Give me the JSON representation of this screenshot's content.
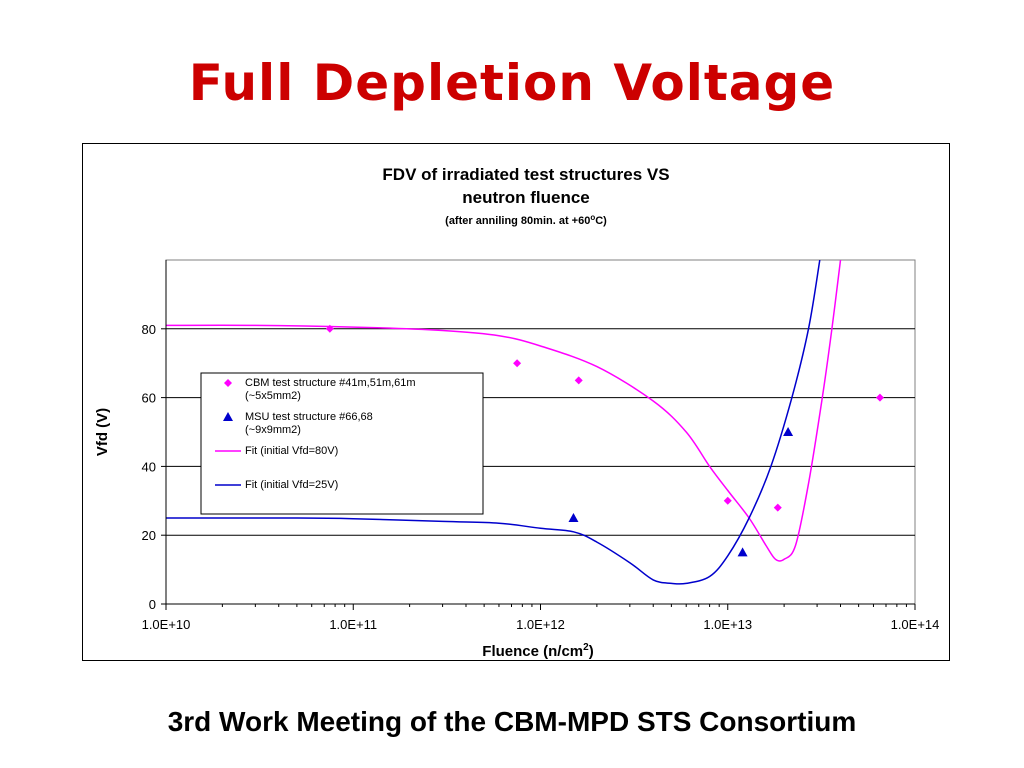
{
  "slide": {
    "title": "Full Depletion Voltage",
    "footer": "3rd Work Meeting of the CBM-MPD STS Consortium"
  },
  "chart_data": {
    "type": "scatter",
    "title_line1": "FDV of irradiated test structures VS",
    "title_line2": "neutron fluence",
    "subtitle_pre": "(after anniling 80min. at +60",
    "subtitle_sup": "o",
    "subtitle_post": "C)",
    "xlabel_pre": "Fluence (n/cm",
    "xlabel_sup": "2",
    "xlabel_post": ")",
    "ylabel": "Vfd (V)",
    "x_scale": "log",
    "xlim": [
      10000000000.0,
      100000000000000.0
    ],
    "ylim": [
      0,
      100
    ],
    "x_ticks": [
      10000000000.0,
      100000000000.0,
      1000000000000.0,
      10000000000000.0,
      100000000000000.0
    ],
    "x_tick_labels": [
      "1.0E+10",
      "1.0E+11",
      "1.0E+12",
      "1.0E+13",
      "1.0E+14"
    ],
    "y_ticks": [
      0,
      20,
      40,
      60,
      80
    ],
    "y_tick_labels": [
      "0",
      "20",
      "40",
      "60",
      "80"
    ],
    "grid": "horizontal",
    "legend_position": "center-left",
    "series": [
      {
        "name": "CBM test structure #41m,51m,61m (~5x5mm2)",
        "legend_lines": [
          "CBM test structure #41m,51m,61m",
          "(~5x5mm2)"
        ],
        "kind": "points",
        "marker": "diamond",
        "color": "#ff00ff",
        "points": [
          [
            75000000000.0,
            80
          ],
          [
            750000000000.0,
            70
          ],
          [
            1600000000000.0,
            65
          ],
          [
            10000000000000.0,
            30
          ],
          [
            18500000000000.0,
            28
          ],
          [
            65000000000000.0,
            60
          ]
        ]
      },
      {
        "name": "MSU test structure #66,68 (~9x9mm2)",
        "legend_lines": [
          "MSU test structure #66,68",
          "(~9x9mm2)"
        ],
        "kind": "points",
        "marker": "triangle",
        "color": "#0000cc",
        "points": [
          [
            1500000000000.0,
            25
          ],
          [
            12000000000000.0,
            15
          ],
          [
            21000000000000.0,
            50
          ]
        ]
      },
      {
        "name": "Fit (initial Vfd=80V)",
        "legend_lines": [
          "Fit (initial Vfd=80V)"
        ],
        "kind": "line",
        "color": "#ff00ff",
        "points": [
          [
            10000000000.0,
            81
          ],
          [
            30000000000.0,
            81
          ],
          [
            100000000000.0,
            80.5
          ],
          [
            300000000000.0,
            79.5
          ],
          [
            600000000000.0,
            78
          ],
          [
            1000000000000.0,
            75
          ],
          [
            2000000000000.0,
            69
          ],
          [
            4000000000000.0,
            59
          ],
          [
            6000000000000.0,
            50
          ],
          [
            8000000000000.0,
            40
          ],
          [
            10000000000000.0,
            33
          ],
          [
            13000000000000.0,
            25
          ],
          [
            16000000000000.0,
            17
          ],
          [
            18000000000000.0,
            13
          ],
          [
            20000000000000.0,
            13
          ],
          [
            23000000000000.0,
            17
          ],
          [
            27000000000000.0,
            35
          ],
          [
            32000000000000.0,
            60
          ],
          [
            36000000000000.0,
            80
          ],
          [
            40000000000000.0,
            100
          ]
        ]
      },
      {
        "name": "Fit (initial Vfd=25V)",
        "legend_lines": [
          "Fit (initial Vfd=25V)"
        ],
        "kind": "line",
        "color": "#0000cc",
        "points": [
          [
            10000000000.0,
            25
          ],
          [
            50000000000.0,
            25
          ],
          [
            100000000000.0,
            24.8
          ],
          [
            300000000000.0,
            24
          ],
          [
            600000000000.0,
            23.5
          ],
          [
            1000000000000.0,
            22
          ],
          [
            1500000000000.0,
            21
          ],
          [
            2000000000000.0,
            18
          ],
          [
            3000000000000.0,
            12
          ],
          [
            4000000000000.0,
            7
          ],
          [
            5000000000000.0,
            6
          ],
          [
            6000000000000.0,
            6
          ],
          [
            8000000000000.0,
            8
          ],
          [
            10000000000000.0,
            14
          ],
          [
            13000000000000.0,
            25
          ],
          [
            17000000000000.0,
            40
          ],
          [
            22000000000000.0,
            60
          ],
          [
            27000000000000.0,
            80
          ],
          [
            31000000000000.0,
            100
          ]
        ]
      }
    ]
  }
}
